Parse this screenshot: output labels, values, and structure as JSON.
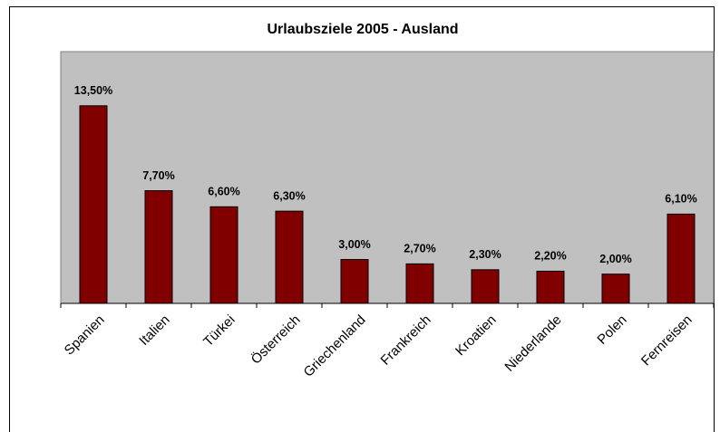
{
  "chart_data": {
    "type": "bar",
    "title": "Urlaubsziele 2005 - Ausland",
    "categories": [
      "Spanien",
      "Italien",
      "Türkei",
      "Österreich",
      "Griechenland",
      "Frankreich",
      "Kroatien",
      "Niederlande",
      "Polen",
      "Fernreisen"
    ],
    "values": [
      13.5,
      7.7,
      6.6,
      6.3,
      3.0,
      2.7,
      2.3,
      2.2,
      2.0,
      6.1
    ],
    "value_labels": [
      "13,50%",
      "7,70%",
      "6,60%",
      "6,30%",
      "3,00%",
      "2,70%",
      "2,30%",
      "2,20%",
      "2,00%",
      "6,10%"
    ],
    "color": "#800000",
    "plot_background": "#c0c0c0",
    "ylim": [
      0,
      17.2
    ]
  }
}
